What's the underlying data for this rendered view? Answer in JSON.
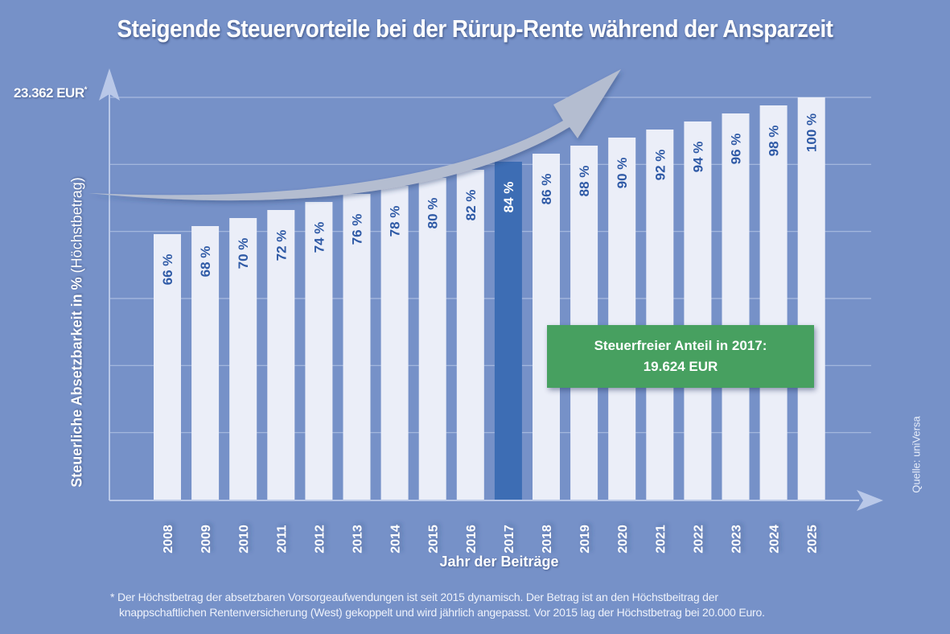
{
  "chart_data": {
    "type": "bar",
    "title": "Steigende Steuervorteile bei der Rürup-Rente während der Ansparzeit",
    "xlabel": "Jahr der Beiträge",
    "ylabel_bold": "Steuerliche Absetzbarkeit in %",
    "ylabel_light": "(Höchstbetrag)",
    "y_max_label": "23.362 EUR",
    "y_max_marker": "*",
    "ylim": [
      0,
      100
    ],
    "grid": true,
    "categories": [
      "2008",
      "2009",
      "2010",
      "2011",
      "2012",
      "2013",
      "2014",
      "2015",
      "2016",
      "2017",
      "2018",
      "2019",
      "2020",
      "2021",
      "2022",
      "2023",
      "2024",
      "2025"
    ],
    "values": [
      66,
      68,
      70,
      72,
      74,
      76,
      78,
      80,
      82,
      84,
      86,
      88,
      90,
      92,
      94,
      96,
      98,
      100
    ],
    "value_suffix": " %",
    "highlight_category": "2017",
    "annotation": {
      "line1": "Steuerfreier Anteil in 2017:",
      "line2": "19.624 EUR"
    },
    "source": "Quelle: uniVersa",
    "footnote_line1": "* Der Höchstbetrag der absetzbaren Vorsorgeaufwendungen ist seit 2015 dynamisch. Der Betrag ist an den Höchstbeitrag der",
    "footnote_line2": "knappschaftlichen Rentenversicherung (West) gekoppelt und wird jährlich angepasst. Vor 2015 lag der Höchstbetrag bei 20.000 Euro."
  },
  "colors": {
    "background": "#7691c8",
    "bar": "#ebeef8",
    "bar_highlight": "#3d6db4",
    "bar_label": "#2f5aa6",
    "bar_label_highlight": "#ffffff",
    "gridline": "#a9bbe0",
    "axis": "#b9c8e8",
    "trend_arrow": "#b4bdd0",
    "annotation_box": "#47a060"
  }
}
